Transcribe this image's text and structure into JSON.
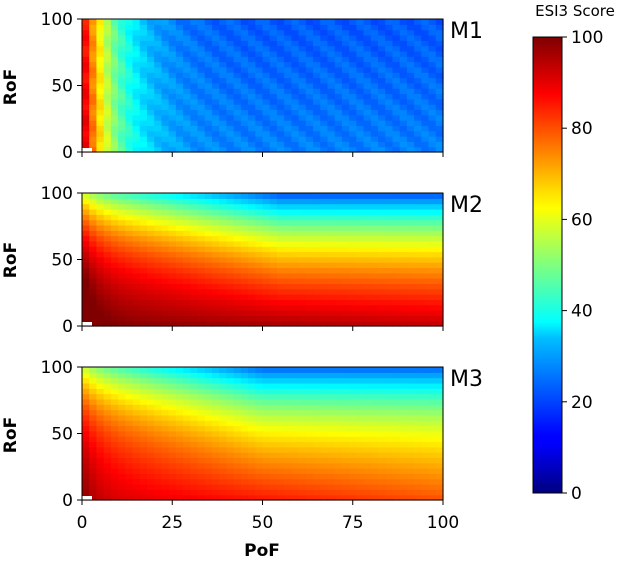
{
  "chart_data": {
    "type": "heatmap",
    "colormap": "jet",
    "shared_xlabel": "PoF",
    "x_ticks": [
      0,
      25,
      50,
      75,
      100
    ],
    "xlim": [
      0,
      100
    ],
    "colorbar": {
      "title": "ESI3 Score",
      "ticks": [
        0,
        20,
        40,
        60,
        80,
        100
      ],
      "range": [
        0,
        100
      ]
    },
    "panels": [
      {
        "label": "M1",
        "ylabel": "RoF",
        "y_ticks": [
          0,
          50,
          100
        ],
        "ylim": [
          0,
          100
        ],
        "description_values": {
          "score_at_low_pof": 95,
          "score_at_mid_pof": 40,
          "score_at_high_pof": 25
        }
      },
      {
        "label": "M2",
        "ylabel": "RoF",
        "y_ticks": [
          0,
          50,
          100
        ],
        "ylim": [
          0,
          100
        ],
        "description_values": {
          "score_at_low_pof_low_rof": 98,
          "score_at_high_pof_low_rof": 88,
          "score_at_high_pof_high_rof": 20
        }
      },
      {
        "label": "M3",
        "ylabel": "RoF",
        "y_ticks": [
          0,
          50,
          100
        ],
        "ylim": [
          0,
          100
        ],
        "description_values": {
          "score_at_low_pof_low_rof": 92,
          "score_at_high_pof_low_rof": 80,
          "score_at_high_pof_high_rof": 20
        }
      }
    ]
  }
}
